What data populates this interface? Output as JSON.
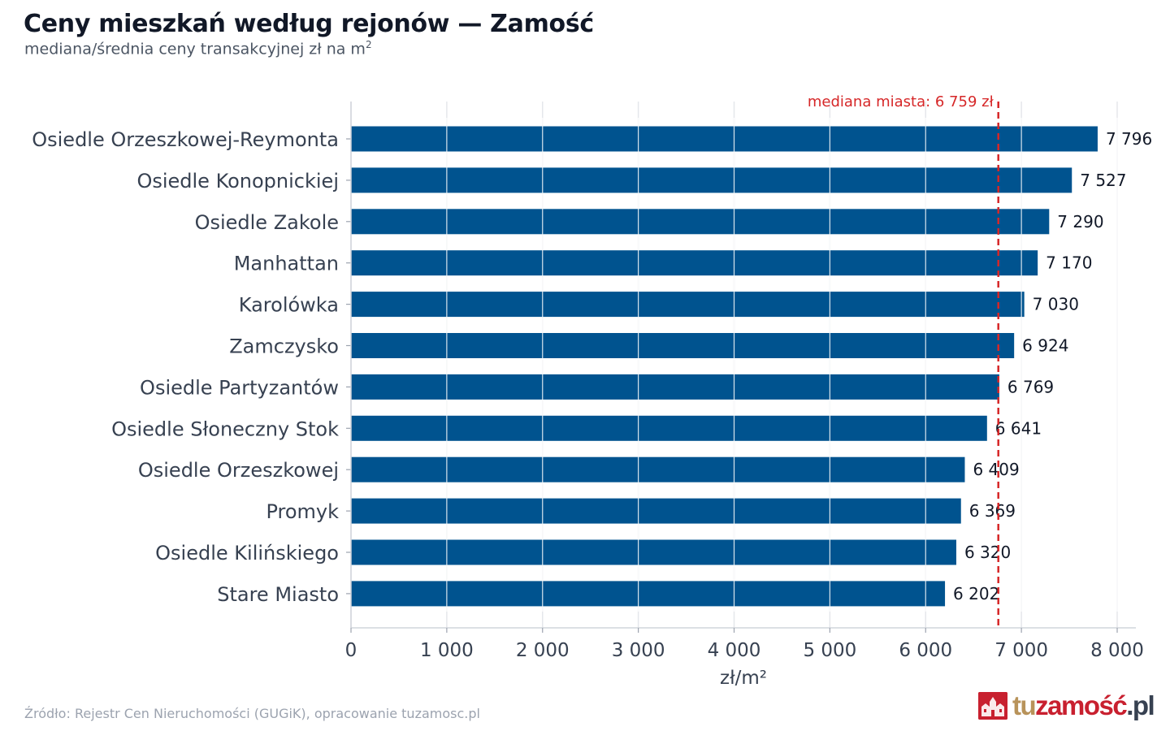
{
  "header": {
    "title": "Ceny mieszkań według rejonów — Zamość",
    "subtitle_main": "mediana/średnia ceny transakcyjnej zł na m",
    "subtitle_sup": "2"
  },
  "chart_data": {
    "type": "bar",
    "orientation": "horizontal",
    "title": "Ceny mieszkań według rejonów — Zamość",
    "subtitle": "mediana/średnia ceny transakcyjnej zł na m²",
    "xlabel": "zł/m²",
    "ylabel": "",
    "xlim": [
      0,
      8200
    ],
    "xticks": [
      0,
      1000,
      2000,
      3000,
      4000,
      5000,
      6000,
      7000,
      8000
    ],
    "xtick_labels": [
      "0",
      "1 000",
      "2 000",
      "3 000",
      "4 000",
      "5 000",
      "6 000",
      "7 000",
      "8 000"
    ],
    "grid": "vertical",
    "bar_color": "#00538f",
    "categories": [
      "Osiedle Orzeszkowej-Reymonta",
      "Osiedle Konopnickiej",
      "Osiedle Zakole",
      "Manhattan",
      "Karolówka",
      "Zamczysko",
      "Osiedle Partyzantów",
      "Osiedle Słoneczny Stok",
      "Osiedle Orzeszkowej",
      "Promyk",
      "Osiedle Kilińskiego",
      "Stare Miasto"
    ],
    "values": [
      7796,
      7527,
      7290,
      7170,
      7030,
      6924,
      6769,
      6641,
      6409,
      6369,
      6320,
      6202
    ],
    "value_labels": [
      "7 796",
      "7 527",
      "7 290",
      "7 170",
      "7 030",
      "6 924",
      "6 769",
      "6 641",
      "6 409",
      "6 369",
      "6 320",
      "6 202"
    ],
    "reference_line": {
      "value": 6759,
      "label": "mediana miasta: 6 759 zł",
      "color": "#d62728",
      "style": "dashed"
    }
  },
  "footer": {
    "source": "Źródło: Rejestr Cen Nieruchomości (GUGiK), opracowanie tuzamosc.pl",
    "logo_parts": [
      "tu",
      "zamość",
      ".pl"
    ]
  },
  "colors": {
    "bar": "#00538f",
    "median_line": "#d62728",
    "grid": "#e5e7eb",
    "axis_text": "#374151"
  }
}
